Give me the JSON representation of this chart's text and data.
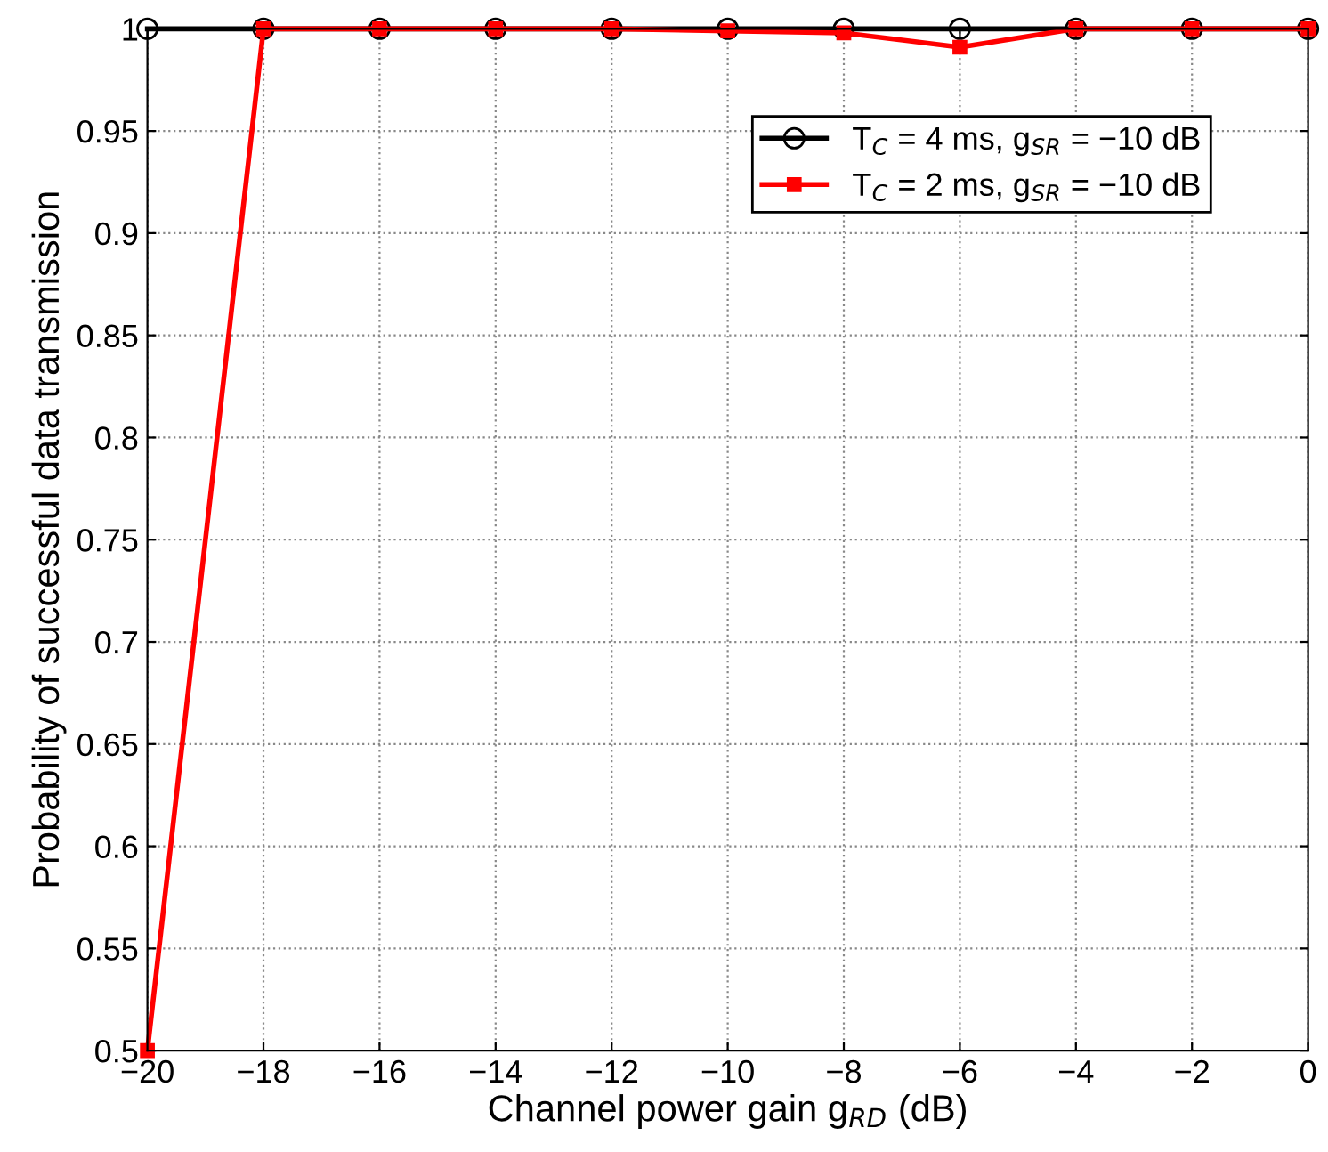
{
  "chart_data": {
    "type": "line",
    "xlabel": "Channel power gain g$_{RD}$ (dB)",
    "ylabel": "Probability of successful data transmission",
    "x": [
      -20,
      -18,
      -16,
      -14,
      -12,
      -10,
      -8,
      -6,
      -4,
      -2,
      0
    ],
    "series": [
      {
        "name": "T$_{C}$ = 4 ms, g$_{SR}$ = −10 dB",
        "color": "#000000",
        "marker": "circle",
        "values": [
          1,
          1,
          1,
          1,
          1,
          1,
          1,
          1,
          1,
          1,
          1
        ]
      },
      {
        "name": "T$_{C}$ = 2 ms, g$_{SR}$ = −10 dB",
        "color": "#ff0000",
        "marker": "square",
        "values": [
          0.5,
          1,
          1,
          1,
          1,
          0.999,
          0.998,
          0.991,
          1,
          1,
          1
        ]
      }
    ],
    "xlim": [
      -20,
      0
    ],
    "xticks": [
      {
        "value": -20,
        "label": "−20"
      },
      {
        "value": -18,
        "label": "−18"
      },
      {
        "value": -16,
        "label": "−16"
      },
      {
        "value": -14,
        "label": "−14"
      },
      {
        "value": -12,
        "label": "−12"
      },
      {
        "value": -10,
        "label": "−10"
      },
      {
        "value": -8,
        "label": "−8"
      },
      {
        "value": -6,
        "label": "−6"
      },
      {
        "value": -4,
        "label": "−4"
      },
      {
        "value": -2,
        "label": "−2"
      },
      0
    ],
    "ylim": [
      0.5,
      1
    ],
    "yticks": [
      0.5,
      0.55,
      0.6,
      0.65,
      0.7,
      0.75,
      0.8,
      0.85,
      0.9,
      0.95,
      1
    ],
    "grid": true,
    "legend": "top right",
    "line_style": "solid"
  }
}
